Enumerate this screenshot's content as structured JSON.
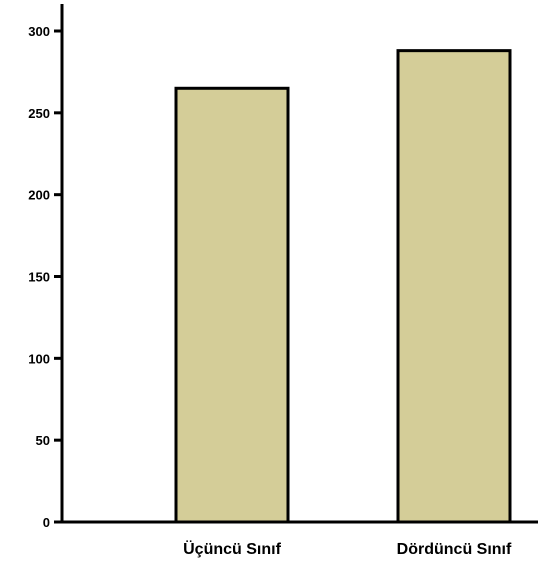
{
  "chart_data": {
    "type": "bar",
    "categories": [
      "Üçüncü Sınıf",
      "Dördüncü Sınıf"
    ],
    "values": [
      265,
      288
    ],
    "title": "",
    "xlabel": "",
    "ylabel": "",
    "ylim": [
      0,
      320
    ],
    "yticks": [
      0,
      50,
      100,
      150,
      200,
      250,
      300
    ],
    "grid": false,
    "legend": "none",
    "colors": {
      "bar_fill": "#d4cd98",
      "bar_stroke": "#000000",
      "axis": "#000000"
    }
  }
}
